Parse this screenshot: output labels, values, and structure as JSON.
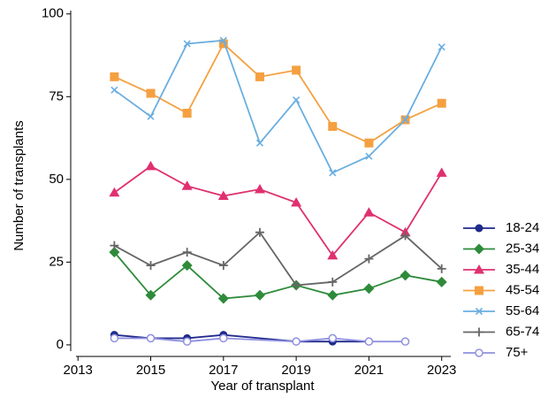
{
  "chart_data": {
    "type": "line",
    "x_label": "Year of transplant",
    "y_label": "Number of transplants",
    "xlim": [
      2012.8,
      2023.25
    ],
    "xticks": [
      2013,
      2015,
      2017,
      2019,
      2021,
      2023
    ],
    "ylim": [
      -3.5,
      101
    ],
    "yticks": [
      0,
      25,
      50,
      75,
      100
    ],
    "grid": false,
    "legend": "right",
    "series": [
      {
        "name": "18-24",
        "color": "#1f2a8c",
        "marker": "circle",
        "x": [
          2014,
          2015,
          2016,
          2017,
          2019,
          2020,
          2021
        ],
        "values": [
          3,
          2,
          2,
          3,
          1,
          1,
          1
        ]
      },
      {
        "name": "25-34",
        "color": "#2e8b3a",
        "marker": "diamond",
        "x": [
          2014,
          2015,
          2016,
          2017,
          2018,
          2019,
          2020,
          2021,
          2022,
          2023
        ],
        "values": [
          28,
          15,
          24,
          14,
          15,
          18,
          15,
          17,
          21,
          19
        ]
      },
      {
        "name": "35-44",
        "color": "#e0306f",
        "marker": "triangle",
        "x": [
          2014,
          2015,
          2016,
          2017,
          2018,
          2019,
          2020,
          2021,
          2022,
          2023
        ],
        "values": [
          46,
          54,
          48,
          45,
          47,
          43,
          27,
          40,
          34,
          52
        ]
      },
      {
        "name": "45-54",
        "color": "#f5a040",
        "marker": "square",
        "x": [
          2014,
          2015,
          2016,
          2017,
          2018,
          2019,
          2020,
          2021,
          2022,
          2023
        ],
        "values": [
          81,
          76,
          70,
          91,
          81,
          83,
          66,
          61,
          68,
          73
        ]
      },
      {
        "name": "55-64",
        "color": "#6aaee0",
        "marker": "x",
        "x": [
          2014,
          2015,
          2016,
          2017,
          2018,
          2019,
          2020,
          2021,
          2022,
          2023
        ],
        "values": [
          77,
          69,
          91,
          92,
          61,
          74,
          52,
          57,
          68,
          90
        ]
      },
      {
        "name": "65-74",
        "color": "#666666",
        "marker": "plus",
        "x": [
          2014,
          2015,
          2016,
          2017,
          2018,
          2019,
          2020,
          2021,
          2022,
          2023
        ],
        "values": [
          30,
          24,
          28,
          24,
          34,
          18,
          19,
          26,
          33,
          23
        ]
      },
      {
        "name": "75+",
        "color": "#9090e0",
        "marker": "hollow-circle",
        "x": [
          2014,
          2015,
          2016,
          2017,
          2019,
          2020,
          2021,
          2022
        ],
        "values": [
          2,
          2,
          1,
          2,
          1,
          2,
          1,
          1
        ]
      }
    ]
  }
}
